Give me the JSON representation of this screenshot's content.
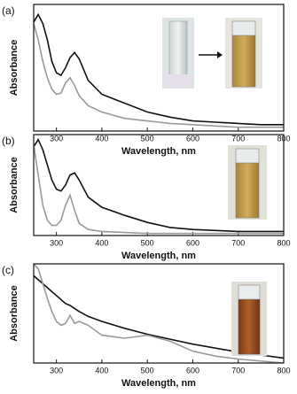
{
  "chart_data": [
    {
      "type": "line",
      "title": "(a)",
      "x_label": "Wavelength, nm",
      "y_label": "Absorbance",
      "xlim": [
        250,
        800
      ],
      "xticks": [
        300,
        400,
        500,
        600,
        700,
        800
      ],
      "ylim": [
        0,
        1
      ],
      "x": [
        250,
        260,
        270,
        280,
        290,
        300,
        310,
        320,
        330,
        340,
        350,
        370,
        400,
        450,
        500,
        550,
        600,
        650,
        700,
        750,
        800
      ],
      "series": [
        {
          "color": "#111111",
          "values": [
            0.86,
            0.92,
            0.85,
            0.72,
            0.55,
            0.46,
            0.44,
            0.5,
            0.58,
            0.62,
            0.57,
            0.4,
            0.29,
            0.22,
            0.15,
            0.11,
            0.08,
            0.07,
            0.06,
            0.05,
            0.05
          ]
        },
        {
          "color": "#9a9a9a",
          "values": [
            0.85,
            0.72,
            0.55,
            0.42,
            0.33,
            0.29,
            0.3,
            0.38,
            0.42,
            0.36,
            0.28,
            0.2,
            0.15,
            0.1,
            0.08,
            0.06,
            0.05,
            0.04,
            0.03,
            0.03,
            0.03
          ]
        }
      ]
    },
    {
      "type": "line",
      "title": "(b)",
      "x_label": "Wavelength, nm",
      "y_label": "Absorbance",
      "xlim": [
        250,
        800
      ],
      "xticks": [
        300,
        400,
        500,
        600,
        700,
        800
      ],
      "ylim": [
        0,
        1
      ],
      "x": [
        250,
        260,
        270,
        280,
        290,
        300,
        310,
        320,
        330,
        340,
        350,
        370,
        400,
        450,
        500,
        550,
        600,
        650,
        700,
        750,
        800
      ],
      "series": [
        {
          "color": "#111111",
          "values": [
            0.88,
            0.95,
            0.85,
            0.7,
            0.55,
            0.46,
            0.44,
            0.5,
            0.6,
            0.62,
            0.55,
            0.38,
            0.28,
            0.2,
            0.13,
            0.08,
            0.06,
            0.05,
            0.04,
            0.04,
            0.04
          ]
        },
        {
          "color": "#9a9a9a",
          "values": [
            0.9,
            0.6,
            0.3,
            0.15,
            0.1,
            0.1,
            0.15,
            0.3,
            0.4,
            0.25,
            0.12,
            0.06,
            0.04,
            0.03,
            0.02,
            0.02,
            0.02,
            0.02,
            0.02,
            0.02,
            0.02
          ]
        }
      ]
    },
    {
      "type": "line",
      "title": "(c)",
      "x_label": "Wavelength, nm",
      "y_label": "Absorbance",
      "xlim": [
        250,
        800
      ],
      "xticks": [
        300,
        400,
        500,
        600,
        700,
        800
      ],
      "ylim": [
        0,
        1
      ],
      "x": [
        250,
        260,
        270,
        280,
        290,
        300,
        310,
        320,
        330,
        340,
        350,
        370,
        400,
        450,
        500,
        550,
        600,
        650,
        700,
        750,
        800
      ],
      "series": [
        {
          "color": "#111111",
          "values": [
            0.88,
            0.84,
            0.8,
            0.76,
            0.72,
            0.68,
            0.64,
            0.6,
            0.58,
            0.55,
            0.52,
            0.47,
            0.42,
            0.35,
            0.29,
            0.24,
            0.19,
            0.15,
            0.11,
            0.08,
            0.05
          ]
        },
        {
          "color": "#9a9a9a",
          "values": [
            1.0,
            0.95,
            0.8,
            0.65,
            0.52,
            0.42,
            0.38,
            0.4,
            0.48,
            0.4,
            0.42,
            0.38,
            0.28,
            0.25,
            0.28,
            0.22,
            0.12,
            0.07,
            0.04,
            0.02,
            0.0
          ]
        }
      ]
    }
  ]
}
